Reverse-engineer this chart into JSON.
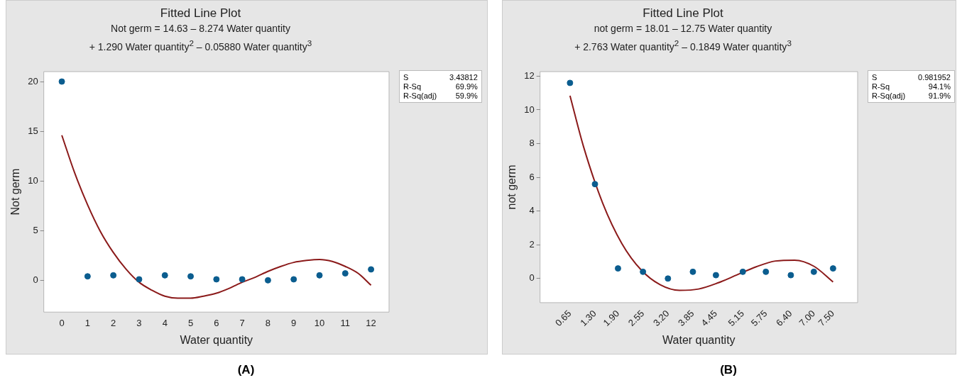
{
  "chart_data": [
    {
      "type": "scatter",
      "title": "Fitted Line Plot",
      "subtitle": "Not germ = 14.63 – 8.274 Water quantity\n+ 1.290 Water quantity$^{2}$ – 0.05880 Water quantity$^{3}$",
      "xlabel": "Water quantity",
      "ylabel": "Not germ",
      "series": [
        {
          "type": "scatter",
          "marker": "circle",
          "color": "#0b5d8f",
          "x": [
            0,
            1,
            2,
            3,
            4,
            5,
            6,
            7,
            8,
            9,
            10,
            11,
            12
          ],
          "values": [
            20,
            0.4,
            0.5,
            0.1,
            0.5,
            0.4,
            0.1,
            0.1,
            0,
            0.1,
            0.5,
            0.7,
            1.1
          ]
        },
        {
          "type": "line",
          "color": "#8b1a1a",
          "x": [
            0,
            0.5,
            1,
            1.5,
            2,
            2.5,
            3,
            3.5,
            4,
            4.5,
            5,
            5.5,
            6,
            6.5,
            7,
            7.5,
            8,
            8.5,
            9,
            9.5,
            10,
            10.5,
            11,
            11.5,
            12
          ],
          "values": [
            14.6,
            10.8,
            7.6,
            4.9,
            2.8,
            1.1,
            -0.2,
            -1.0,
            -1.6,
            -1.8,
            -1.8,
            -1.6,
            -1.3,
            -0.8,
            -0.2,
            0.3,
            0.9,
            1.4,
            1.8,
            2.0,
            2.1,
            1.9,
            1.4,
            0.7,
            -0.5
          ]
        }
      ],
      "xlim": [
        -0.7,
        12.7
      ],
      "xticks": [
        0,
        1,
        2,
        3,
        4,
        5,
        6,
        7,
        8,
        9,
        10,
        11,
        12
      ],
      "ylim": [
        -3.2,
        21
      ],
      "yticks": [
        0,
        5,
        10,
        15,
        20
      ],
      "grid": false,
      "legend": false,
      "annotations": [
        "S",
        "3.43812",
        "R-Sq",
        "69.9%",
        "R-Sq(adj)",
        "59.9%",
        "(A)"
      ]
    },
    {
      "type": "scatter",
      "title": "Fitted Line Plot",
      "subtitle": "not germ = 18.01 – 12.75 Water quantity\n+ 2.763 Water quantity$^{2}$ – 0.1849 Water quantity$^{3}$",
      "xlabel": "Water quantity",
      "ylabel": "not germ",
      "series": [
        {
          "type": "scatter",
          "marker": "circle",
          "color": "#0b5d8f",
          "x": [
            0.65,
            1.3,
            1.9,
            2.55,
            3.2,
            3.85,
            4.45,
            5.15,
            5.75,
            6.4,
            7.0,
            7.5
          ],
          "values": [
            11.6,
            5.6,
            0.6,
            0.4,
            0,
            0.4,
            0.2,
            0.4,
            0.4,
            0.2,
            0.4,
            0.6
          ]
        },
        {
          "type": "line",
          "color": "#8b1a1a",
          "x": [
            0.65,
            1,
            1.5,
            2,
            2.5,
            3,
            3.5,
            4,
            4.5,
            5,
            5.5,
            6,
            6.5,
            7,
            7.5
          ],
          "values": [
            10.84,
            7.84,
            4.48,
            2.08,
            0.52,
            -0.37,
            -0.7,
            -0.62,
            -0.26,
            0.22,
            0.7,
            1.04,
            1.09,
            0.73,
            -0.2
          ]
        }
      ],
      "xlim": [
        -0.13,
        8.14
      ],
      "xticks": [
        {
          "value": 0.65,
          "label": "0.65"
        },
        {
          "value": 1.3,
          "label": "1.30"
        },
        {
          "value": 1.9,
          "label": "1.90"
        },
        {
          "value": 2.55,
          "label": "2.55"
        },
        {
          "value": 3.2,
          "label": "3.20"
        },
        {
          "value": 3.85,
          "label": "3.85"
        },
        {
          "value": 4.45,
          "label": "4.45"
        },
        {
          "value": 5.15,
          "label": "5.15"
        },
        {
          "value": 5.75,
          "label": "5.75"
        },
        {
          "value": 6.4,
          "label": "6.40"
        },
        {
          "value": 7.0,
          "label": "7.00"
        },
        {
          "value": 7.5,
          "label": "7.50"
        }
      ],
      "ylim": [
        -1.43,
        12.27
      ],
      "yticks": [
        0,
        2,
        4,
        6,
        8,
        10,
        12
      ],
      "grid": false,
      "legend": false,
      "annotations": [
        "S",
        "0.981952",
        "R-Sq",
        "94.1%",
        "R-Sq(adj)",
        "91.9%",
        "(B)"
      ]
    }
  ]
}
